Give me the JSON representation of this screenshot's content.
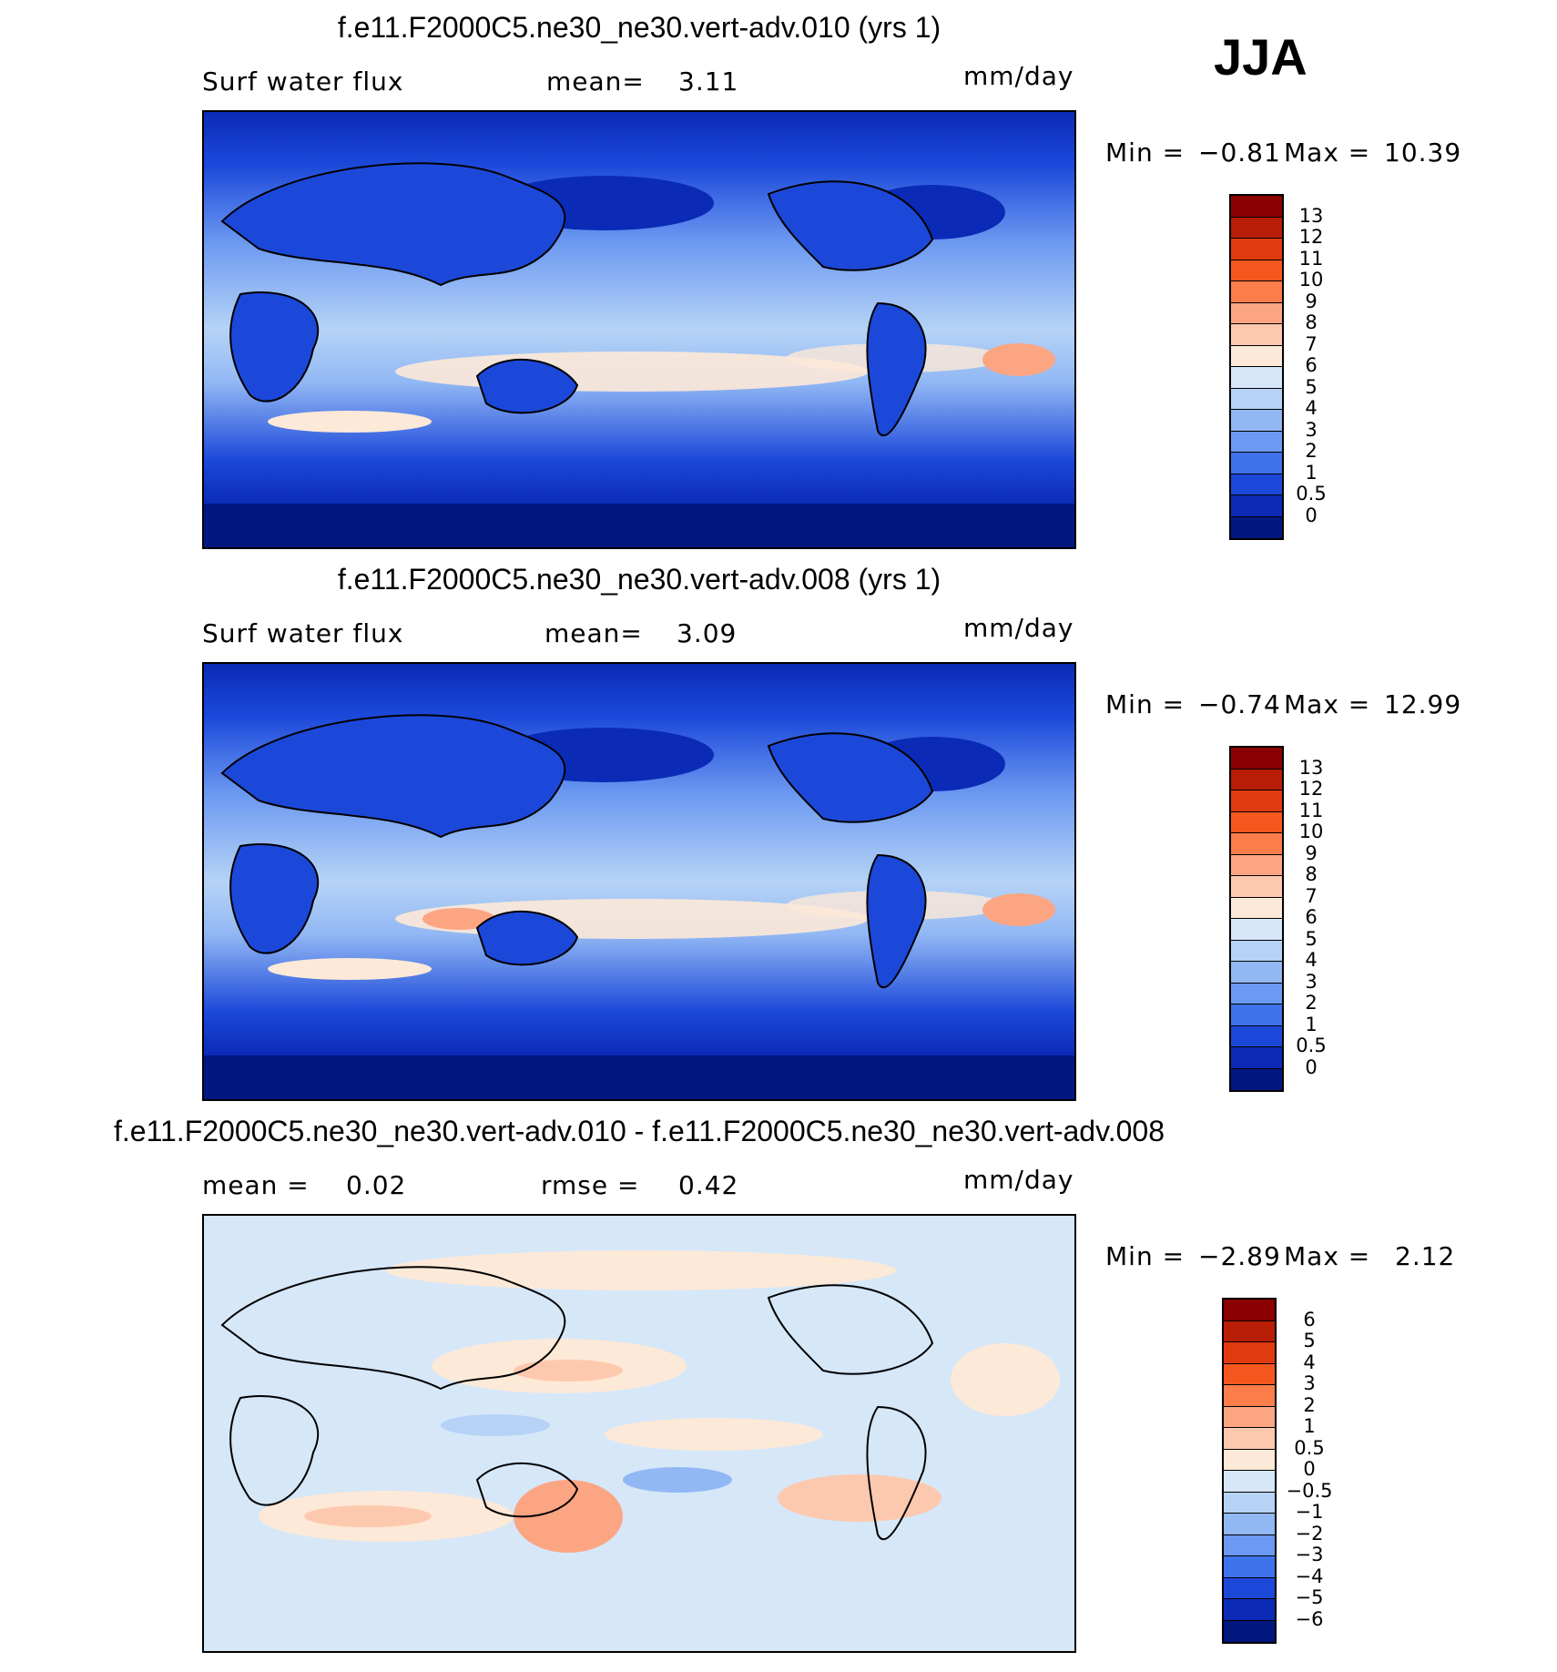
{
  "season": "JJA",
  "panels": [
    {
      "title": "f.e11.F2000C5.ne30_ne30.vert-adv.010 (yrs 1)",
      "left_label": "Surf water flux",
      "mean_label": "mean=",
      "mean_value": "3.11",
      "units": "mm/day",
      "min_label": "Min =",
      "min_value": "−0.81",
      "max_label": "Max =",
      "max_value": "10.39",
      "colorbar": {
        "ticks": [
          "13",
          "12",
          "11",
          "10",
          "9",
          "8",
          "7",
          "6",
          "5",
          "4",
          "3",
          "2",
          "1",
          "0.5",
          "0"
        ],
        "colors": [
          "#8b0000",
          "#b81d05",
          "#e03a10",
          "#f6571e",
          "#fb7d49",
          "#fca582",
          "#fdc9ae",
          "#fde9d8",
          "#d6e7f8",
          "#b6d3f6",
          "#92b8f4",
          "#6c99f1",
          "#3f73ec",
          "#1c48da",
          "#0b2bb6",
          "#031780"
        ]
      }
    },
    {
      "title": "f.e11.F2000C5.ne30_ne30.vert-adv.008 (yrs 1)",
      "left_label": "Surf water flux",
      "mean_label": "mean=",
      "mean_value": "3.09",
      "units": "mm/day",
      "min_label": "Min =",
      "min_value": "−0.74",
      "max_label": "Max =",
      "max_value": "12.99",
      "colorbar": {
        "ticks": [
          "13",
          "12",
          "11",
          "10",
          "9",
          "8",
          "7",
          "6",
          "5",
          "4",
          "3",
          "2",
          "1",
          "0.5",
          "0"
        ],
        "colors": [
          "#8b0000",
          "#b81d05",
          "#e03a10",
          "#f6571e",
          "#fb7d49",
          "#fca582",
          "#fdc9ae",
          "#fde9d8",
          "#d6e7f8",
          "#b6d3f6",
          "#92b8f4",
          "#6c99f1",
          "#3f73ec",
          "#1c48da",
          "#0b2bb6",
          "#031780"
        ]
      }
    },
    {
      "title": "f.e11.F2000C5.ne30_ne30.vert-adv.010 - f.e11.F2000C5.ne30_ne30.vert-adv.008",
      "left_label": "mean =",
      "left_value": "0.02",
      "mean_label": "rmse =",
      "mean_value": "0.42",
      "units": "mm/day",
      "min_label": "Min =",
      "min_value": "−2.89",
      "max_label": "Max =",
      "max_value": "2.12",
      "colorbar": {
        "ticks": [
          "6",
          "5",
          "4",
          "3",
          "2",
          "1",
          "0.5",
          "0",
          "−0.5",
          "−1",
          "−2",
          "−3",
          "−4",
          "−5",
          "−6"
        ],
        "colors": [
          "#8b0000",
          "#b81d05",
          "#e03a10",
          "#f6571e",
          "#fb7d49",
          "#fca582",
          "#fdc9ae",
          "#fde9d8",
          "#d6e7f8",
          "#b6d3f6",
          "#92b8f4",
          "#6c99f1",
          "#3f73ec",
          "#1c48da",
          "#0b2bb6",
          "#031780"
        ]
      }
    }
  ]
}
